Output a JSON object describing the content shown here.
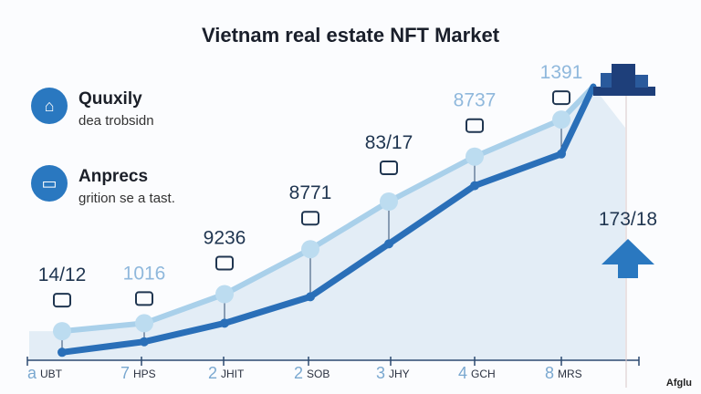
{
  "chart_data": {
    "type": "line",
    "title": "Vietnam real estate NFT Market",
    "categories": [
      "UBT",
      "HPS",
      "JHIT",
      "SOB",
      "JHY",
      "GCH",
      "MRS"
    ],
    "category_numbers": [
      "a",
      "7",
      "2",
      "2",
      "3",
      "4",
      "8"
    ],
    "series": [
      {
        "name": "light",
        "color": "#a9d0ea",
        "values": [
          11,
          14,
          25,
          42,
          60,
          77,
          91
        ]
      },
      {
        "name": "dark",
        "color": "#2a6fb8",
        "values": [
          3,
          7,
          14,
          24,
          44,
          66,
          78
        ]
      }
    ],
    "point_labels": [
      "14/12",
      "1016",
      "9236",
      "8771",
      "83/17",
      "8737",
      "1391"
    ],
    "side_value": "173/18",
    "ylim": [
      0,
      110
    ]
  },
  "features": [
    {
      "title": "Quuxily",
      "subtitle": "dea trobsidn",
      "icon": "broom-icon"
    },
    {
      "title": "Anprecs",
      "subtitle": "grition se a tast.",
      "icon": "folder-icon"
    }
  ],
  "footer": "Afglu"
}
